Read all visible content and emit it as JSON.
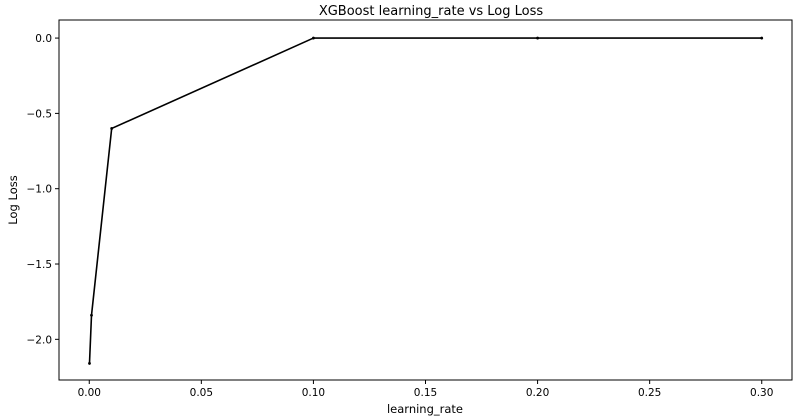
{
  "chart_data": {
    "type": "line",
    "title": "XGBoost learning_rate vs Log Loss",
    "xlabel": "learning_rate",
    "ylabel": "Log Loss",
    "xlim": [
      -0.0135,
      0.3135
    ],
    "ylim": [
      -2.27,
      0.12
    ],
    "x_ticks": [
      0.0,
      0.05,
      0.1,
      0.15,
      0.2,
      0.25,
      0.3
    ],
    "x_tick_labels": [
      "0.00",
      "0.05",
      "0.10",
      "0.15",
      "0.20",
      "0.25",
      "0.30"
    ],
    "y_ticks": [
      0.0,
      -0.5,
      -1.0,
      -1.5,
      -2.0
    ],
    "y_tick_labels": [
      "0.0",
      "−0.5",
      "−1.0",
      "−1.5",
      "−2.0"
    ],
    "grid": false,
    "series": [
      {
        "color": "#000000",
        "x": [
          0.0001,
          0.001,
          0.01,
          0.1,
          0.2,
          0.3
        ],
        "y": [
          -2.16,
          -1.84,
          -0.6,
          0.0,
          0.0,
          0.0
        ]
      }
    ]
  }
}
